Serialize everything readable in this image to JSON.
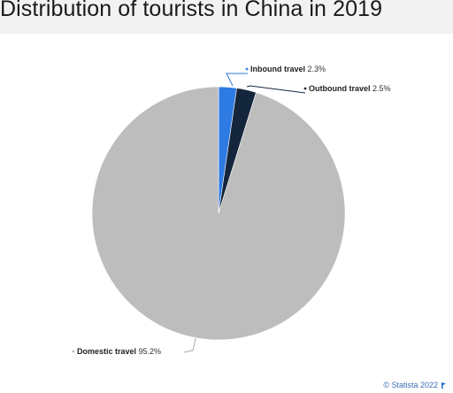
{
  "title": "Distribution of tourists in China in 2019",
  "credit": "© Statista 2022",
  "colors": {
    "inbound": "#2e7ae3",
    "outbound": "#14263c",
    "domestic": "#bdbdbd",
    "leader": "#aaaaaa"
  },
  "chart_data": {
    "type": "pie",
    "title": "Distribution of tourists in China in 2019",
    "slices": [
      {
        "label": "Inbound travel",
        "value": 2.3,
        "value_label": "2.3%",
        "color": "#2e7ae3"
      },
      {
        "label": "Outbound travel",
        "value": 2.5,
        "value_label": "2.5%",
        "color": "#14263c"
      },
      {
        "label": "Domestic travel",
        "value": 95.2,
        "value_label": "95.2%",
        "color": "#bdbdbd"
      }
    ]
  }
}
